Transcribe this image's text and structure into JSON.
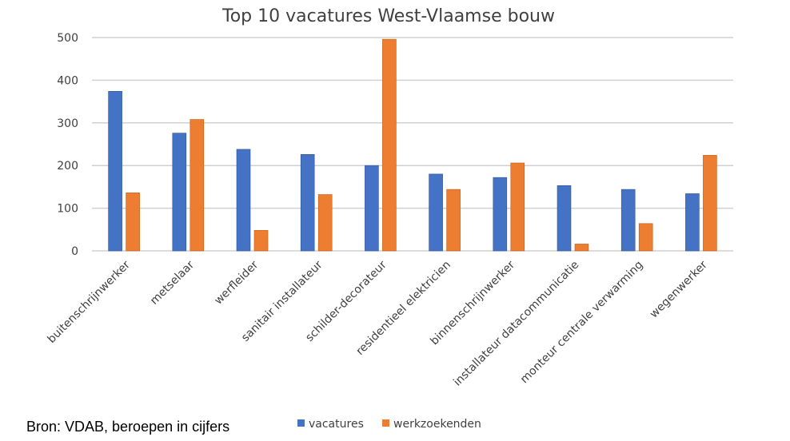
{
  "chart_data": {
    "type": "bar",
    "title": "Top 10 vacatures West-Vlaamse bouw",
    "categories": [
      "buitenschrijnwerker",
      "metselaar",
      "werfleider",
      "sanitair installateur",
      "schilder-decorateur",
      "residentieel elektricien",
      "binnenschrijnwerker",
      "installateur datacommunicatie",
      "monteur centrale verwarming",
      "wegenwerker"
    ],
    "series": [
      {
        "name": "vacatures",
        "color": "#4472C4",
        "values": [
          374,
          276,
          238,
          226,
          200,
          180,
          172,
          153,
          144,
          134
        ]
      },
      {
        "name": "werkzoekenden",
        "color": "#ED7D31",
        "values": [
          136,
          308,
          48,
          132,
          496,
          144,
          206,
          16,
          64,
          224
        ]
      }
    ],
    "yticks": [
      "0",
      "100",
      "200",
      "300",
      "400",
      "500"
    ],
    "ylim": [
      0,
      500
    ],
    "xlabel": "",
    "ylabel": "",
    "grid": true,
    "legend": "bottom"
  },
  "source": "Bron: VDAB, beroepen in cijfers"
}
